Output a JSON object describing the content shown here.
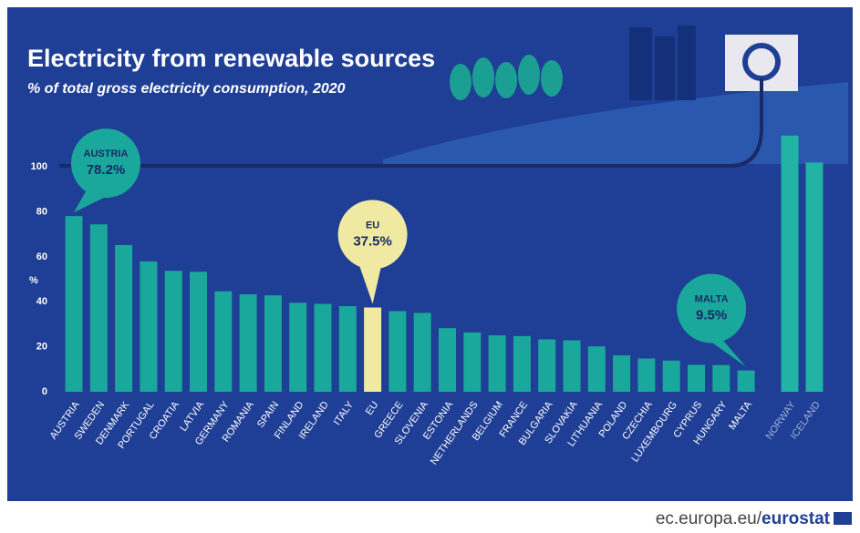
{
  "chart_data": {
    "type": "bar",
    "title": "Electricity from renewable sources",
    "subtitle": "% of total gross electricity consumption, 2020",
    "y_label": "%",
    "categories": [
      "AUSTRIA",
      "SWEDEN",
      "DENMARK",
      "PORTUGAL",
      "CROATIA",
      "LATVIA",
      "GERMANY",
      "ROMANIA",
      "SPAIN",
      "FINLAND",
      "IRELAND",
      "ITALY",
      "EU",
      "GREECE",
      "SLOVENIA",
      "ESTONIA",
      "NETHERLANDS",
      "BELGIUM",
      "FRANCE",
      "BULGARIA",
      "SLOVAKIA",
      "LITHUANIA",
      "POLAND",
      "CZECHIA",
      "LUXEMBOURG",
      "CYPRUS",
      "HUNGARY",
      "MALTA",
      "NORWAY",
      "ICELAND"
    ],
    "values": [
      78.2,
      74.5,
      65.3,
      58.0,
      53.8,
      53.4,
      44.7,
      43.4,
      42.9,
      39.6,
      39.1,
      38.1,
      37.5,
      35.9,
      35.1,
      28.3,
      26.4,
      25.1,
      24.8,
      23.3,
      22.9,
      20.2,
      16.2,
      14.8,
      13.9,
      12.0,
      11.9,
      9.5,
      114.0,
      102.0
    ],
    "colors": [
      "#19a89b",
      "#19a89b",
      "#19a89b",
      "#19a89b",
      "#19a89b",
      "#19a89b",
      "#19a89b",
      "#19a89b",
      "#19a89b",
      "#19a89b",
      "#19a89b",
      "#19a89b",
      "#efe9a2",
      "#19a89b",
      "#19a89b",
      "#19a89b",
      "#19a89b",
      "#19a89b",
      "#19a89b",
      "#19a89b",
      "#19a89b",
      "#19a89b",
      "#19a89b",
      "#19a89b",
      "#19a89b",
      "#19a89b",
      "#19a89b",
      "#19a89b",
      "#21b3a4",
      "#21b3a4"
    ],
    "ylim": [
      0,
      120
    ],
    "yticks": [
      0,
      20,
      40,
      60,
      80,
      100
    ],
    "callouts": [
      {
        "category": 0,
        "label": "AUSTRIA",
        "text": "78.2%",
        "color": "#19a89b"
      },
      {
        "category": 12,
        "label": "EU",
        "text": "37.5%",
        "color": "#efe9a2"
      },
      {
        "category": 27,
        "label": "MALTA",
        "text": "9.5%",
        "color": "#19a89b"
      }
    ],
    "source_site": "ec.europa.eu/",
    "source_brand": "eurostat"
  }
}
